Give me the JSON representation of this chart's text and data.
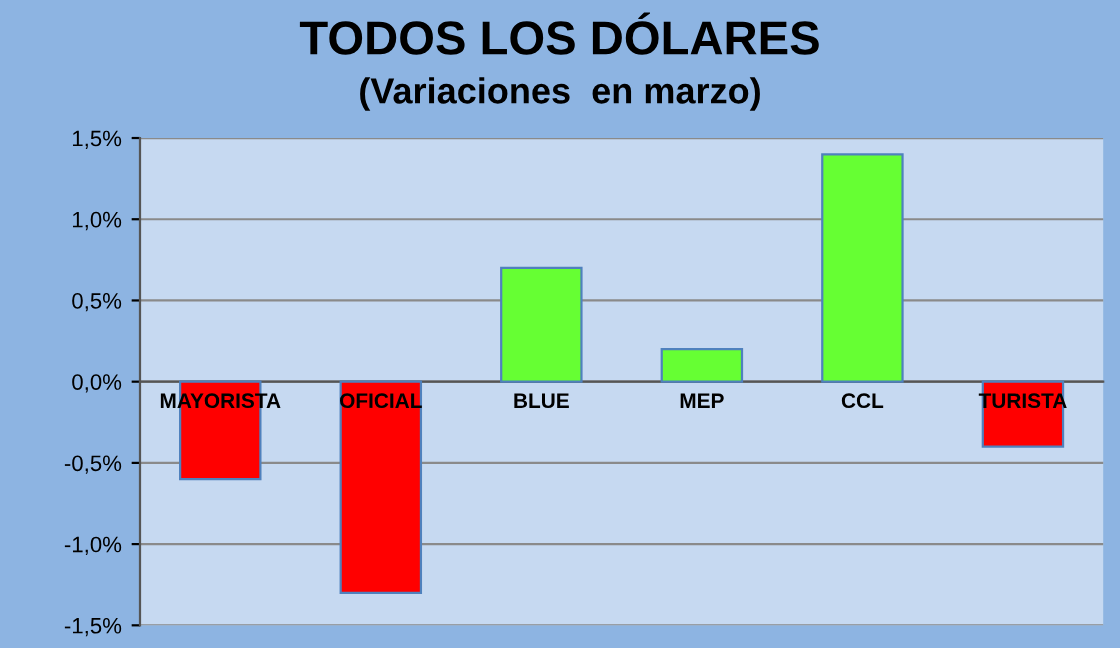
{
  "chart_data": {
    "type": "bar",
    "title": "TODOS LOS DÓLARES",
    "subtitle": "(Variaciones  en marzo)",
    "categories": [
      "MAYORISTA",
      "OFICIAL",
      "BLUE",
      "MEP",
      "CCL",
      "TURISTA"
    ],
    "values": [
      -0.6,
      -1.3,
      0.7,
      0.2,
      1.4,
      -0.4
    ],
    "colors": [
      "#ff0000",
      "#ff0000",
      "#66ff33",
      "#66ff33",
      "#66ff33",
      "#ff0000"
    ],
    "ylim": [
      -1.5,
      1.5
    ],
    "yticks": [
      {
        "value": -1.5,
        "label": "-1,5%"
      },
      {
        "value": -1.0,
        "label": "-1,0%"
      },
      {
        "value": -0.5,
        "label": "-0,5%"
      },
      {
        "value": 0.0,
        "label": "0,0%"
      },
      {
        "value": 0.5,
        "label": "0,5%"
      },
      {
        "value": 1.0,
        "label": "1,0%"
      },
      {
        "value": 1.5,
        "label": "1,5%"
      }
    ],
    "grid": "y",
    "legend": false
  }
}
